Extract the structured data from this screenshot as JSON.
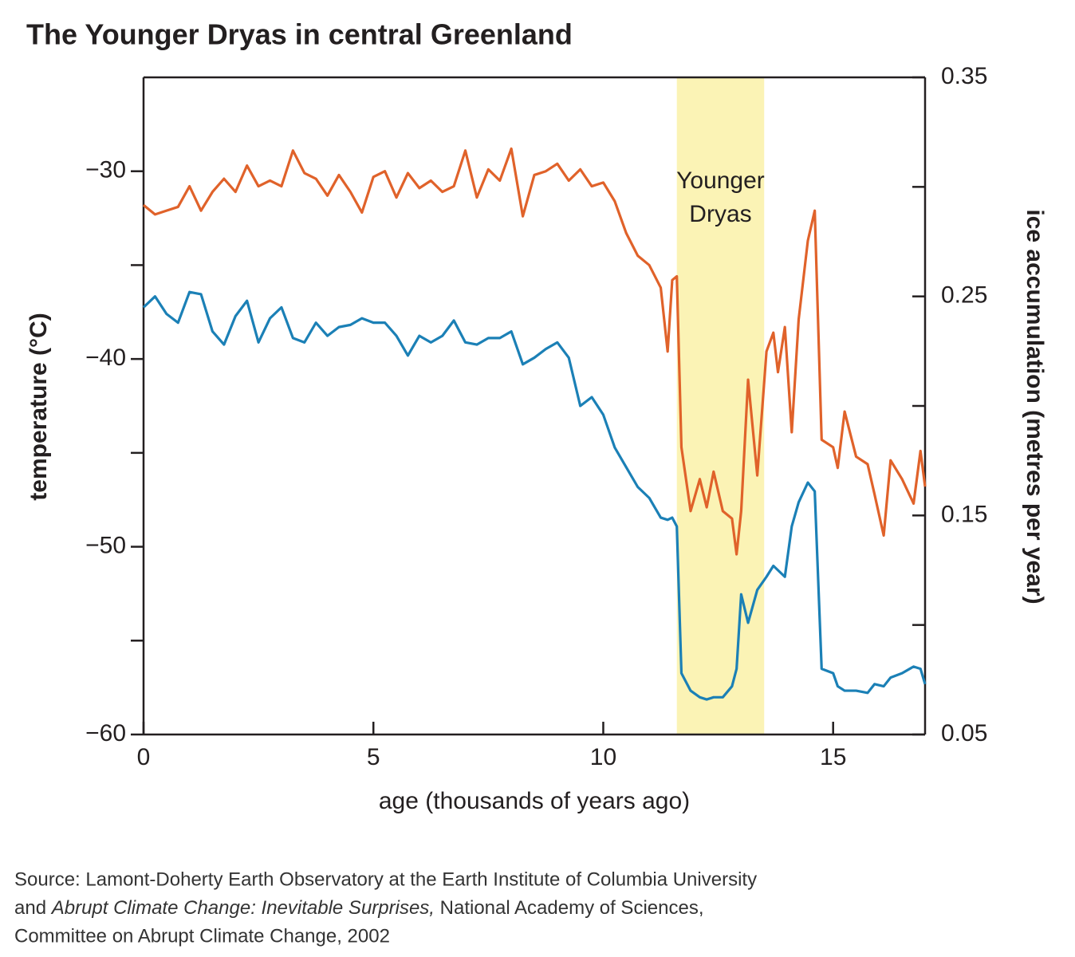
{
  "chart_data": {
    "type": "line",
    "title": "The Younger Dryas in central Greenland",
    "xlabel": "age (thousands of years ago)",
    "ylabel": "temperature (°C)",
    "y2label": "ice accumulation (metres per year)",
    "xlim": [
      0,
      17
    ],
    "xticks": [
      0,
      5,
      10,
      15
    ],
    "ylim": [
      -60,
      -25
    ],
    "yticks": [
      {
        "value": -30,
        "label": "−30"
      },
      {
        "value": -40,
        "label": "−40"
      },
      {
        "value": -50,
        "label": "−50"
      },
      {
        "value": -60,
        "label": "−60"
      }
    ],
    "yminorticks": [
      -35,
      -45,
      -55
    ],
    "y2lim": [
      0.05,
      0.35
    ],
    "y2ticks": [
      0.35,
      0.25,
      0.15,
      0.05
    ],
    "y2minorticks": [
      0.3,
      0.2,
      0.1
    ],
    "highlight": {
      "range": [
        11.6,
        13.5
      ],
      "color": "#fbf3b5",
      "label": [
        "Younger",
        "Dryas"
      ]
    },
    "x": [
      0,
      0.25,
      0.5,
      0.75,
      1,
      1.25,
      1.5,
      1.75,
      2,
      2.25,
      2.5,
      2.75,
      3,
      3.25,
      3.5,
      3.75,
      4,
      4.25,
      4.5,
      4.75,
      5,
      5.25,
      5.5,
      5.75,
      6,
      6.25,
      6.5,
      6.75,
      7,
      7.25,
      7.5,
      7.75,
      8,
      8.25,
      8.5,
      8.75,
      9,
      9.25,
      9.5,
      9.75,
      10,
      10.25,
      10.5,
      10.75,
      11,
      11.25,
      11.4,
      11.5,
      11.6,
      11.7,
      11.9,
      12.1,
      12.25,
      12.4,
      12.6,
      12.8,
      12.9,
      13,
      13.15,
      13.35,
      13.55,
      13.7,
      13.8,
      13.95,
      14.1,
      14.25,
      14.45,
      14.6,
      14.75,
      15,
      15.1,
      15.25,
      15.5,
      15.75,
      15.9,
      16.1,
      16.25,
      16.5,
      16.75,
      16.9,
      17
    ],
    "series": [
      {
        "name": "temperature",
        "color": "#e0622a",
        "axis": "y",
        "values": [
          -31.8,
          -32.3,
          -32.1,
          -31.9,
          -30.8,
          -32.1,
          -31.1,
          -30.4,
          -31.1,
          -29.7,
          -30.8,
          -30.5,
          -30.8,
          -28.9,
          -30.1,
          -30.4,
          -31.3,
          -30.2,
          -31.1,
          -32.2,
          -30.3,
          -30.0,
          -31.4,
          -30.1,
          -30.9,
          -30.5,
          -31.1,
          -30.8,
          -28.9,
          -31.4,
          -29.9,
          -30.5,
          -28.8,
          -32.4,
          -30.2,
          -30.0,
          -29.6,
          -30.5,
          -29.9,
          -30.8,
          -30.6,
          -31.6,
          -33.3,
          -34.5,
          -35.0,
          -36.2,
          -39.6,
          -35.8,
          -35.6,
          -44.7,
          -48.1,
          -46.4,
          -47.9,
          -46.0,
          -48.1,
          -48.5,
          -50.4,
          -48.1,
          -41.1,
          -46.2,
          -39.6,
          -38.6,
          -40.7,
          -38.3,
          -43.9,
          -37.9,
          -33.7,
          -32.1,
          -44.3,
          -44.7,
          -45.8,
          -42.8,
          -45.2,
          -45.6,
          -47.2,
          -49.4,
          -45.4,
          -46.4,
          -47.7,
          -44.9,
          -46.8
        ]
      },
      {
        "name": "ice accumulation",
        "color": "#1b80b6",
        "axis": "y2",
        "values": [
          0.245,
          0.25,
          0.242,
          0.238,
          0.252,
          0.251,
          0.234,
          0.228,
          0.241,
          0.248,
          0.229,
          0.24,
          0.245,
          0.231,
          0.229,
          0.238,
          0.232,
          0.236,
          0.237,
          0.24,
          0.238,
          0.238,
          0.232,
          0.223,
          0.232,
          0.229,
          0.232,
          0.239,
          0.229,
          0.228,
          0.231,
          0.231,
          0.234,
          0.219,
          0.222,
          0.226,
          0.229,
          0.222,
          0.2,
          0.204,
          0.196,
          0.181,
          0.172,
          0.163,
          0.158,
          0.149,
          0.148,
          0.149,
          0.145,
          0.078,
          0.07,
          0.067,
          0.066,
          0.067,
          0.067,
          0.072,
          0.08,
          0.114,
          0.101,
          0.116,
          0.122,
          0.127,
          0.125,
          0.122,
          0.145,
          0.156,
          0.165,
          0.161,
          0.08,
          0.078,
          0.072,
          0.07,
          0.07,
          0.069,
          0.073,
          0.072,
          0.076,
          0.078,
          0.081,
          0.08,
          0.073
        ]
      }
    ]
  },
  "source": {
    "line1": "Source: Lamont-Doherty Earth Observatory at the Earth Institute of Columbia University",
    "line2_start": "and ",
    "line2_italic": "Abrupt Climate Change: Inevitable Surprises,",
    "line2_end": " National Academy of Sciences,",
    "line3": "Committee on Abrupt Climate Change, 2002"
  }
}
